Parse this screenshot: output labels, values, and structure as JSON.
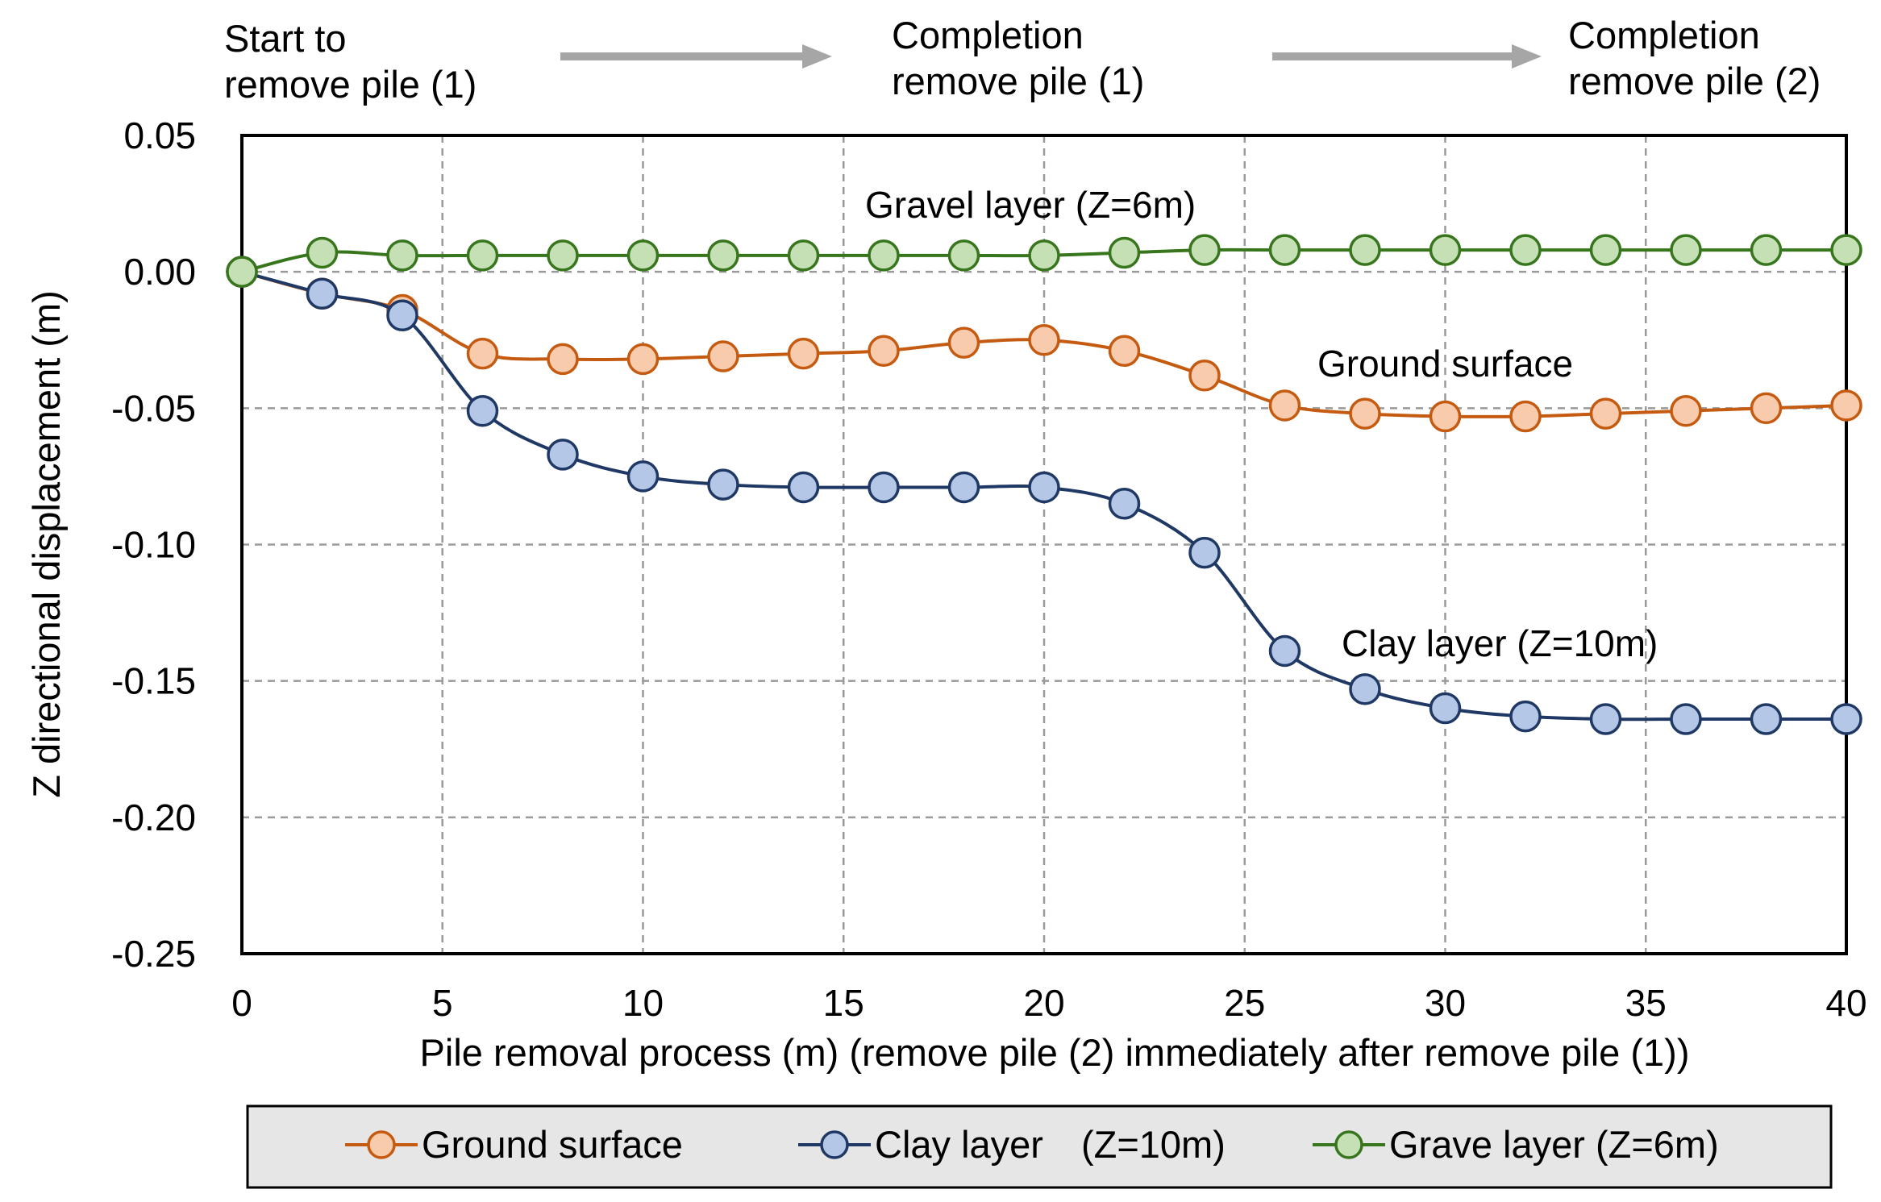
{
  "chart_data": {
    "type": "line",
    "x": [
      0,
      2,
      4,
      6,
      8,
      10,
      12,
      14,
      16,
      18,
      20,
      22,
      24,
      26,
      28,
      30,
      32,
      34,
      36,
      38,
      40
    ],
    "series": [
      {
        "name": "Ground surface",
        "color": "#c55a11",
        "fill": "#f8cbad",
        "values": [
          0.0,
          -0.008,
          -0.014,
          -0.03,
          -0.032,
          -0.032,
          -0.031,
          -0.03,
          -0.029,
          -0.026,
          -0.025,
          -0.029,
          -0.038,
          -0.049,
          -0.052,
          -0.053,
          -0.053,
          -0.052,
          -0.051,
          -0.05,
          -0.049
        ]
      },
      {
        "name": "Clay layer　(Z=10m)",
        "color": "#1f3864",
        "fill": "#b4c7e7",
        "values": [
          0.0,
          -0.008,
          -0.016,
          -0.051,
          -0.067,
          -0.075,
          -0.078,
          -0.079,
          -0.079,
          -0.079,
          -0.079,
          -0.085,
          -0.103,
          -0.139,
          -0.153,
          -0.16,
          -0.163,
          -0.164,
          -0.164,
          -0.164,
          -0.164
        ]
      },
      {
        "name": "Grave layer (Z=6m)",
        "color": "#38761d",
        "fill": "#c5e0b4",
        "values": [
          0.0,
          0.007,
          0.006,
          0.006,
          0.006,
          0.006,
          0.006,
          0.006,
          0.006,
          0.006,
          0.006,
          0.007,
          0.008,
          0.008,
          0.008,
          0.008,
          0.008,
          0.008,
          0.008,
          0.008,
          0.008
        ]
      }
    ],
    "xlabel": "Pile removal process (m) (remove pile (2) immediately after remove pile (1))",
    "ylabel": "Z directional displacement (m)",
    "xlim": [
      0,
      40
    ],
    "ylim": [
      -0.25,
      0.05
    ],
    "xticks": [
      "0",
      "5",
      "10",
      "15",
      "20",
      "25",
      "30",
      "35",
      "40"
    ],
    "yticks": [
      "0.05",
      "0.00",
      "-0.05",
      "-0.10",
      "-0.15",
      "-0.20",
      "-0.25"
    ],
    "grid": true,
    "legend_position": "bottom",
    "annotations": {
      "gravel": "Gravel layer (Z=6m)",
      "ground": "Ground surface",
      "clay": "Clay layer (Z=10m)"
    },
    "stages": {
      "start_line1": "Start to",
      "start_line2": "remove pile (1)",
      "comp1_line1": "Completion",
      "comp1_line2": "remove pile (1)",
      "comp2_line1": "Completion",
      "comp2_line2": "remove pile (2)"
    },
    "arrow_color": "#a6a6a6"
  }
}
